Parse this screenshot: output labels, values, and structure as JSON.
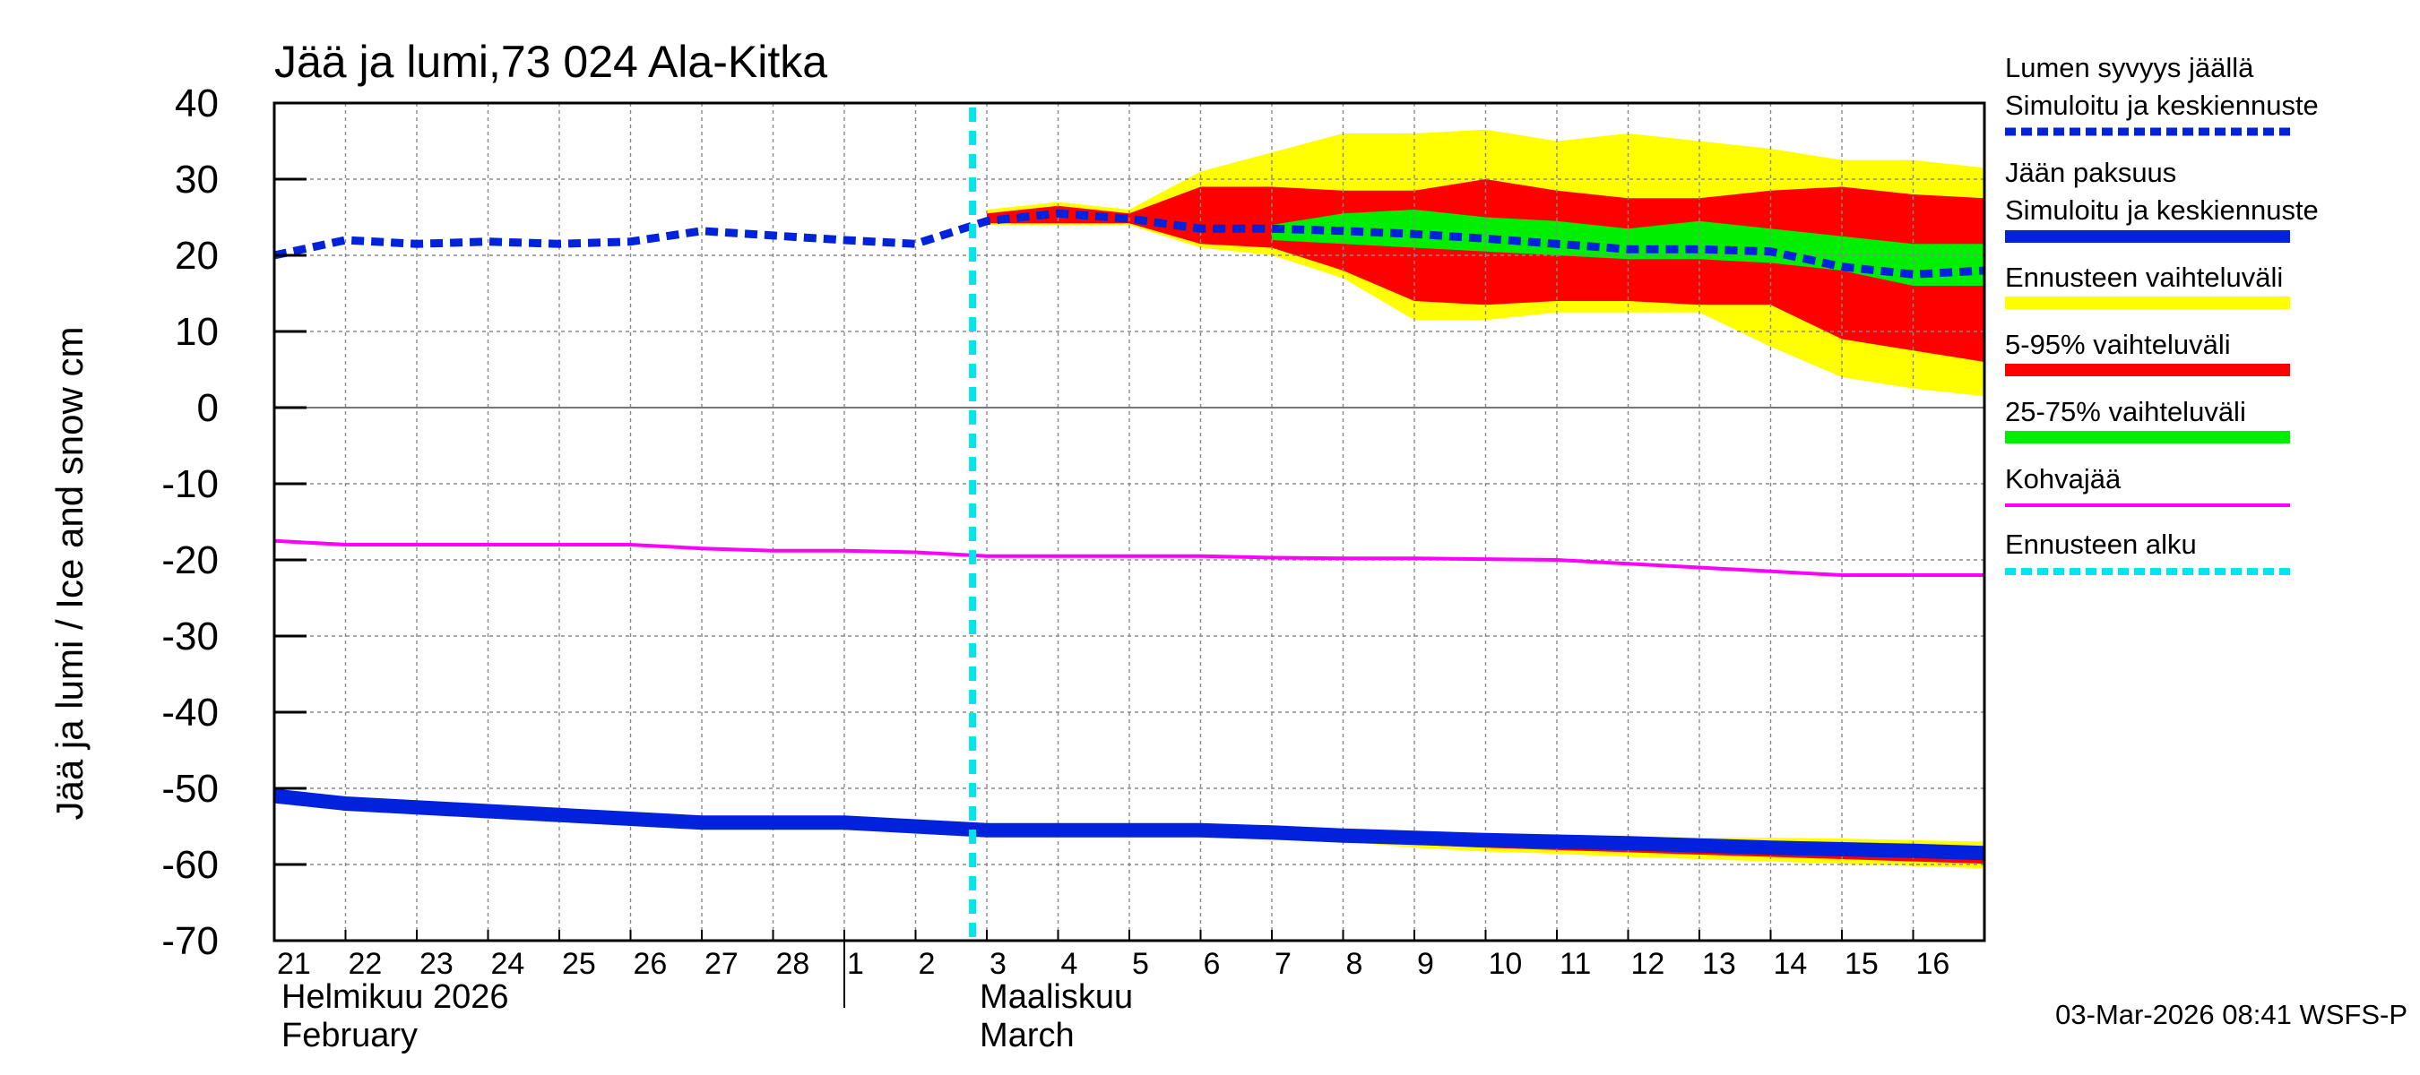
{
  "chart_data": {
    "type": "area",
    "title": "Jää ja lumi,73 024 Ala-Kitka",
    "ylabel": "Jää ja lumi / Ice and snow    cm",
    "ylim": [
      -70,
      40
    ],
    "yticks": [
      40,
      30,
      20,
      10,
      0,
      -10,
      -20,
      -30,
      -40,
      -50,
      -60,
      -70
    ],
    "x_start_day": 21,
    "x_end_day": 45,
    "x_tick_labels": [
      "21",
      "22",
      "23",
      "24",
      "25",
      "26",
      "27",
      "28",
      "1",
      "2",
      "3",
      "4",
      "5",
      "6",
      "7",
      "8",
      "9",
      "10",
      "11",
      "12",
      "13",
      "14",
      "15",
      "16"
    ],
    "months": [
      {
        "fi": "Helmikuu  2026",
        "en": "February"
      },
      {
        "fi": "Maaliskuu",
        "en": "March"
      }
    ],
    "forecast_start": 30.8,
    "grid": true,
    "series": [
      {
        "name": "Lumen syvyys jäällä — Simuloitu ja keskiennuste",
        "color": "#0022dd",
        "style": "dashed",
        "x": [
          21,
          22,
          23,
          24,
          25,
          26,
          27,
          28,
          29,
          30,
          31,
          32,
          33,
          34,
          35,
          36,
          37,
          38,
          39,
          40,
          41,
          42,
          43,
          44,
          45
        ],
        "values": [
          20,
          22,
          21.5,
          21.8,
          21.5,
          21.8,
          23.2,
          22.6,
          22,
          21.5,
          24.5,
          25.5,
          24.8,
          23.5,
          23.5,
          23.2,
          22.8,
          22.2,
          21.5,
          20.8,
          20.8,
          20.5,
          18.5,
          17.5,
          18
        ]
      },
      {
        "name": "Jään paksuus — Simuloitu ja keskiennuste",
        "color": "#0022dd",
        "style": "solid",
        "x": [
          21,
          22,
          23,
          24,
          25,
          26,
          27,
          28,
          29,
          30,
          31,
          32,
          33,
          34,
          35,
          36,
          37,
          38,
          39,
          40,
          41,
          42,
          43,
          44,
          45
        ],
        "values": [
          -51,
          -52,
          -52.5,
          -53,
          -53.5,
          -54,
          -54.5,
          -54.5,
          -54.5,
          -55,
          -55.5,
          -55.5,
          -55.5,
          -55.5,
          -55.8,
          -56.2,
          -56.5,
          -56.8,
          -57,
          -57.2,
          -57.5,
          -57.8,
          -58,
          -58.2,
          -58.5
        ]
      },
      {
        "name": "Kohvajää",
        "color": "#ff00ff",
        "style": "solid",
        "x": [
          21,
          22,
          23,
          24,
          25,
          26,
          27,
          28,
          29,
          30,
          31,
          32,
          33,
          34,
          35,
          36,
          37,
          38,
          39,
          40,
          41,
          42,
          43,
          44,
          45
        ],
        "values": [
          -17.5,
          -18,
          -18,
          -18,
          -18,
          -18,
          -18.5,
          -18.8,
          -18.8,
          -19,
          -19.5,
          -19.5,
          -19.5,
          -19.5,
          -19.7,
          -19.8,
          -19.8,
          -19.9,
          -20,
          -20.5,
          -21,
          -21.5,
          -22,
          -22,
          -22
        ]
      }
    ],
    "bands": [
      {
        "name": "Ennusteen vaihteluväli",
        "color": "#ffff00",
        "x": [
          31,
          32,
          33,
          34,
          35,
          36,
          37,
          38,
          39,
          40,
          41,
          42,
          43,
          44,
          45
        ],
        "upper": [
          26,
          27,
          26,
          31,
          33.5,
          36,
          36,
          36.5,
          35,
          36,
          35,
          34,
          32.5,
          32.5,
          31.5
        ],
        "lower": [
          24,
          24,
          24,
          21,
          20,
          17,
          11.5,
          11.5,
          12.5,
          12.5,
          12.5,
          8,
          4,
          2.5,
          1.5
        ]
      },
      {
        "name": "5-95% vaihteluväli",
        "color": "#ff0000",
        "x": [
          31,
          32,
          33,
          34,
          35,
          36,
          37,
          38,
          39,
          40,
          41,
          42,
          43,
          44,
          45
        ],
        "upper": [
          25.5,
          26.5,
          25.5,
          29,
          29,
          28.5,
          28.5,
          30,
          28.5,
          27.5,
          27.5,
          28.5,
          29,
          28,
          27.5
        ],
        "lower": [
          24.2,
          24.2,
          24.2,
          21.5,
          21,
          18,
          14,
          13.5,
          14,
          14,
          13.5,
          13.5,
          9,
          7.5,
          6
        ]
      },
      {
        "name": "25-75% vaihteluväli",
        "color": "#00ee00",
        "x": [
          35,
          36,
          37,
          38,
          39,
          40,
          41,
          42,
          43,
          44,
          45
        ],
        "upper": [
          24,
          25.5,
          26,
          25,
          24.5,
          23.5,
          24.5,
          23.5,
          22.5,
          21.5,
          21.5
        ],
        "lower": [
          22,
          21.5,
          21,
          20.5,
          20,
          19.5,
          19.5,
          19,
          18,
          16,
          16
        ]
      },
      {
        "name": "Jää — Ennusteen vaihteluväli",
        "color": "#ffff00",
        "x": [
          36,
          37,
          38,
          39,
          40,
          41,
          42,
          43,
          44,
          45
        ],
        "upper": [
          -55.8,
          -56,
          -56,
          -56.2,
          -56.3,
          -56.5,
          -56.5,
          -56.6,
          -56.8,
          -57
        ],
        "lower": [
          -57,
          -57.8,
          -58.3,
          -58.6,
          -59,
          -59.3,
          -59.6,
          -59.9,
          -60.2,
          -60.5
        ]
      },
      {
        "name": "Jää — 5-95% vaihteluväli",
        "color": "#ff0000",
        "x": [
          36,
          37,
          38,
          39,
          40,
          41,
          42,
          43,
          44,
          45
        ],
        "upper": [
          -55.9,
          -56.1,
          -56.2,
          -56.4,
          -56.6,
          -56.8,
          -57,
          -57.2,
          -57.4,
          -57.6
        ],
        "lower": [
          -56.8,
          -57.4,
          -57.8,
          -58.1,
          -58.4,
          -58.7,
          -59,
          -59.3,
          -59.6,
          -59.9
        ]
      },
      {
        "name": "Jää — 25-75% vaihteluväli",
        "color": "#00ee00",
        "x": [
          36,
          37,
          38,
          39,
          40,
          41,
          42,
          43,
          44,
          45
        ],
        "upper": [
          -56,
          -56.3,
          -56.5,
          -56.7,
          -56.9,
          -57.1,
          -57.3,
          -57.5,
          -57.7,
          -57.9
        ],
        "lower": [
          -56.4,
          -56.8,
          -57.1,
          -57.4,
          -57.6,
          -57.9,
          -58.1,
          -58.4,
          -58.6,
          -58.9
        ]
      }
    ],
    "legend": [
      {
        "line1": "Lumen syvyys jäällä",
        "line2": "Simuloitu ja keskiennuste",
        "color": "#0022dd",
        "style": "dashed"
      },
      {
        "line1": "Jään paksuus",
        "line2": "Simuloitu ja keskiennuste",
        "color": "#0022dd",
        "style": "solid"
      },
      {
        "line1": "",
        "line2": "Ennusteen vaihteluväli",
        "color": "#ffff00",
        "style": "solid"
      },
      {
        "line1": "",
        "line2": "5-95% vaihteluväli",
        "color": "#ff0000",
        "style": "solid"
      },
      {
        "line1": "",
        "line2": "25-75% vaihteluväli",
        "color": "#00ee00",
        "style": "solid"
      },
      {
        "line1": "",
        "line2": "Kohvajää",
        "color": "#ff00ff",
        "style": "solid"
      },
      {
        "line1": "",
        "line2": "Ennusteen alku",
        "color": "#00e5ee",
        "style": "dashed"
      }
    ],
    "footer": "03-Mar-2026 08:41 WSFS-P"
  }
}
